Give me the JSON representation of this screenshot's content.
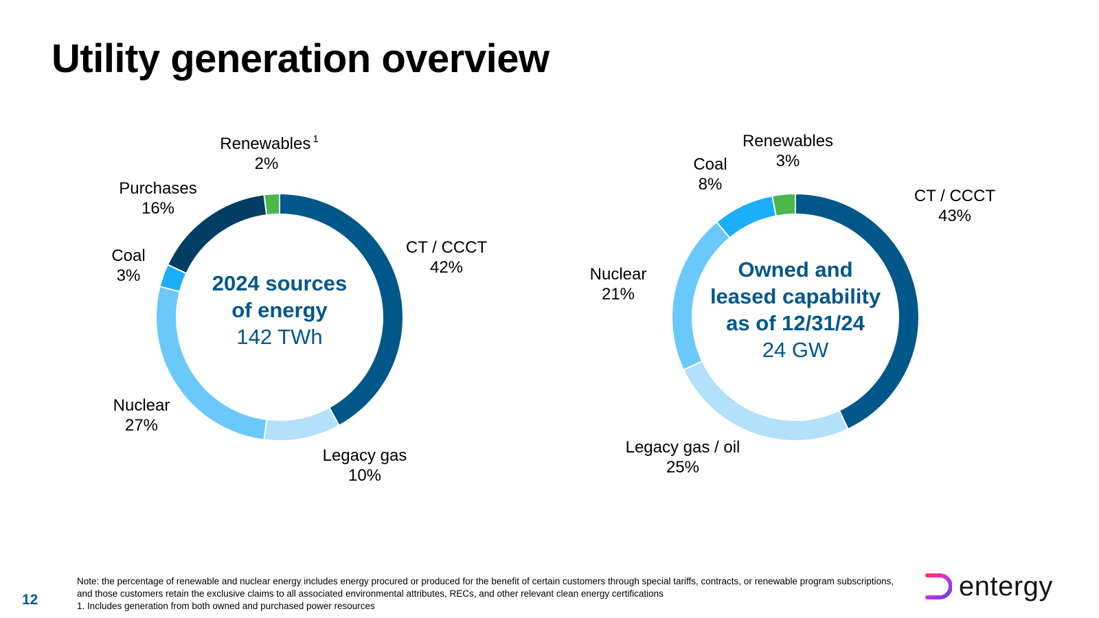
{
  "page": {
    "title": "Utility generation overview",
    "page_number": "12",
    "footnote_note": "Note: the percentage of renewable and nuclear energy includes energy procured or produced for the benefit of certain customers through special tariffs, contracts, or renewable program subscriptions, and those customers retain the exclusive claims to all associated environmental attributes, RECs, and other relevant clean energy certifications",
    "footnote_1": "1. Includes generation from both owned and purchased power resources",
    "logo_text": "entergy"
  },
  "colors": {
    "accent": "#00578a",
    "ct_ccct": "#00578a",
    "legacy_gas": "#b3e0fb",
    "nuclear": "#6ac8fb",
    "coal": "#1aaefb",
    "purchases": "#003e63",
    "renewables": "#4cb74a"
  },
  "chart_data": [
    {
      "type": "pie",
      "center_title": [
        "2024 sources",
        "of energy"
      ],
      "center_value": "142 TWh",
      "slices": [
        {
          "key": "ct_ccct",
          "label": "CT / CCCT",
          "value": 42,
          "value_label": "42%",
          "superscript": "",
          "color": "#00578a"
        },
        {
          "key": "legacy_gas",
          "label": "Legacy gas",
          "value": 10,
          "value_label": "10%",
          "superscript": "",
          "color": "#b3e0fb"
        },
        {
          "key": "nuclear",
          "label": "Nuclear",
          "value": 27,
          "value_label": "27%",
          "superscript": "",
          "color": "#6ac8fb"
        },
        {
          "key": "coal",
          "label": "Coal",
          "value": 3,
          "value_label": "3%",
          "superscript": "",
          "color": "#1aaefb"
        },
        {
          "key": "purchases",
          "label": "Purchases",
          "value": 16,
          "value_label": "16%",
          "superscript": "",
          "color": "#003e63"
        },
        {
          "key": "renewables",
          "label": "Renewables",
          "value": 2,
          "value_label": "2%",
          "superscript": "1",
          "color": "#4cb74a"
        }
      ]
    },
    {
      "type": "pie",
      "center_title": [
        "Owned and",
        "leased capability",
        "as of 12/31/24"
      ],
      "center_value": "24 GW",
      "slices": [
        {
          "key": "ct_ccct",
          "label": "CT / CCCT",
          "value": 43,
          "value_label": "43%",
          "superscript": "",
          "color": "#00578a"
        },
        {
          "key": "legacy_gas_oil",
          "label": "Legacy gas / oil",
          "value": 25,
          "value_label": "25%",
          "superscript": "",
          "color": "#b3e0fb"
        },
        {
          "key": "nuclear",
          "label": "Nuclear",
          "value": 21,
          "value_label": "21%",
          "superscript": "",
          "color": "#6ac8fb"
        },
        {
          "key": "coal",
          "label": "Coal",
          "value": 8,
          "value_label": "8%",
          "superscript": "",
          "color": "#1aaefb"
        },
        {
          "key": "renewables",
          "label": "Renewables",
          "value": 3,
          "value_label": "3%",
          "superscript": "",
          "color": "#4cb74a"
        }
      ]
    }
  ]
}
